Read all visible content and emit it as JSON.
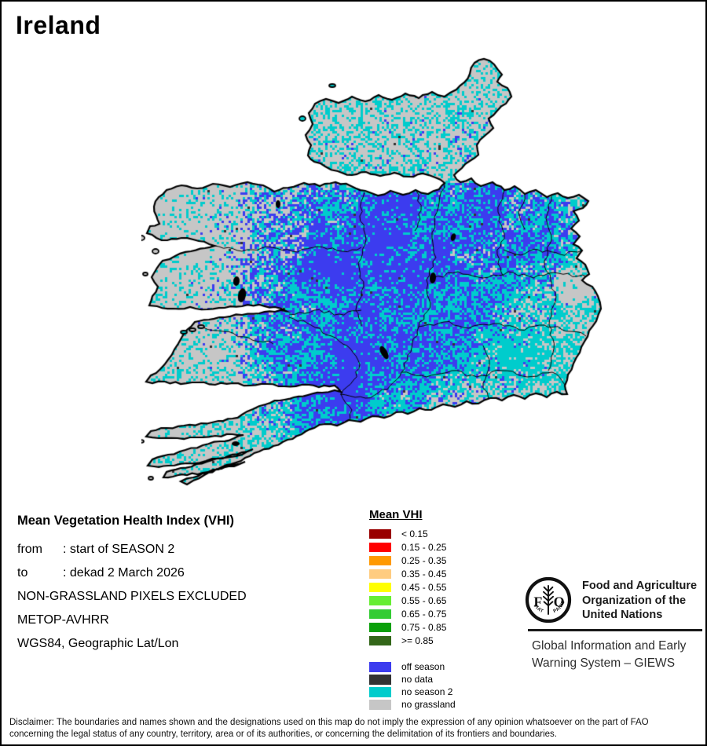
{
  "title": "Ireland",
  "map": {
    "description": "Mean VHI pixel map of Ireland",
    "colors": {
      "sea": "#ffffff",
      "coastline": "#000000",
      "county_border": "#000000",
      "lake": "#000000"
    }
  },
  "info_block": {
    "heading": "Mean Vegetation Health Index (VHI)",
    "lines": [
      {
        "label": "from",
        "text": ": start of SEASON 2"
      },
      {
        "label": "to",
        "text": ": dekad 2 March 2026"
      },
      {
        "label": "",
        "text": "NON-GRASSLAND PIXELS EXCLUDED"
      },
      {
        "label": "",
        "text": "METOP-AVHRR"
      },
      {
        "label": "",
        "text": "WGS84, Geographic Lat/Lon"
      }
    ]
  },
  "legend": {
    "title": "Mean VHI",
    "classes": [
      {
        "label": "< 0.15",
        "color": "#990000"
      },
      {
        "label": "0.15 - 0.25",
        "color": "#ff0000"
      },
      {
        "label": "0.25 - 0.35",
        "color": "#ff9900"
      },
      {
        "label": "0.35 - 0.45",
        "color": "#ffcc80"
      },
      {
        "label": "0.45 - 0.55",
        "color": "#ffff00"
      },
      {
        "label": "0.55 - 0.65",
        "color": "#66ee33"
      },
      {
        "label": "0.65 - 0.75",
        "color": "#33cc33"
      },
      {
        "label": "0.75 - 0.85",
        "color": "#0aa00a"
      },
      {
        "label": ">= 0.85",
        "color": "#336619"
      }
    ],
    "status_classes": [
      {
        "label": "off season",
        "color": "#3c3cef"
      },
      {
        "label": "no data",
        "color": "#333333"
      },
      {
        "label": "no season 2",
        "color": "#00cccc"
      },
      {
        "label": "no grassland",
        "color": "#c6c6c6"
      }
    ]
  },
  "fao": {
    "logo_letters": "FAO",
    "logo_motto": "FIAT · PANIS",
    "org_name_lines": [
      "Food and Agriculture",
      "Organization of the",
      "United Nations"
    ],
    "giews_lines": [
      "Global Information and Early",
      "Warning System – GIEWS"
    ]
  },
  "disclaimer": {
    "line1": "Disclaimer: The boundaries and names shown and the designations used on this map do not imply the expression of any opinion whatsoever on the part of FAO",
    "line2": "concerning the legal status of any country, territory, area or of its authorities, or concerning the delimitation of its frontiers and boundaries."
  }
}
